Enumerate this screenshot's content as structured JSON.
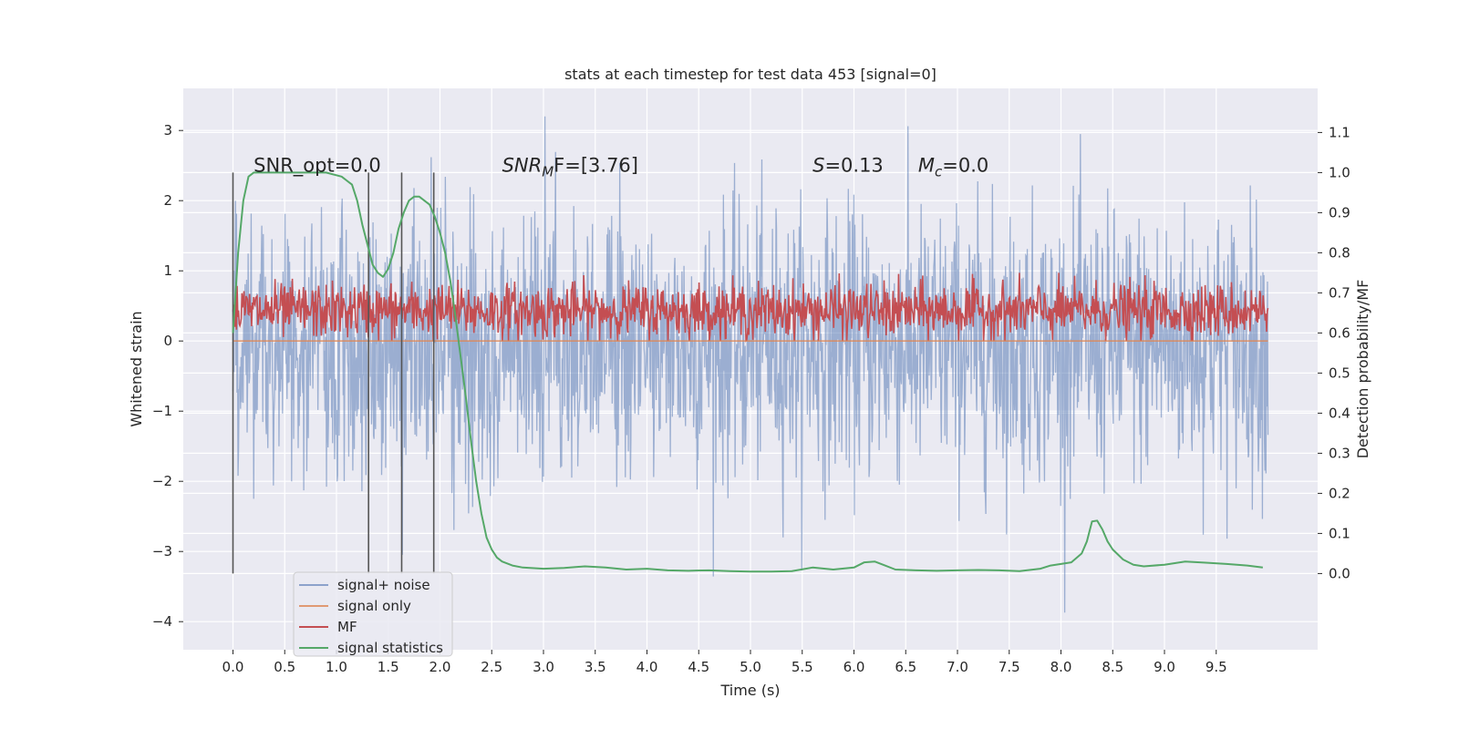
{
  "chart_data": {
    "type": "line",
    "title": "stats at each timestep for test data 453 [signal=0]",
    "xlabel": "Time (s)",
    "ylabel_left": "Whitened strain",
    "ylabel_right": "Detection probability/MF",
    "xlim": [
      -0.48,
      10.48
    ],
    "ylim_left": [
      -4.4,
      3.6
    ],
    "ylim_right": [
      -0.19,
      1.21
    ],
    "x_ticks": [
      0.0,
      0.5,
      1.0,
      1.5,
      2.0,
      2.5,
      3.0,
      3.5,
      4.0,
      4.5,
      5.0,
      5.5,
      6.0,
      6.5,
      7.0,
      7.5,
      8.0,
      8.5,
      9.0,
      9.5
    ],
    "x_tick_labels": [
      "0.0",
      "0.5",
      "1.0",
      "1.5",
      "2.0",
      "2.5",
      "3.0",
      "3.5",
      "4.0",
      "4.5",
      "5.0",
      "5.5",
      "6.0",
      "6.5",
      "7.0",
      "7.5",
      "8.0",
      "8.5",
      "9.0",
      "9.5"
    ],
    "y_left_ticks": [
      3,
      2,
      1,
      0,
      -1,
      -2,
      -3,
      -4
    ],
    "y_left_tick_labels": [
      "3",
      "2",
      "1",
      "0",
      "−1",
      "−2",
      "−3",
      "−4"
    ],
    "y_right_ticks": [
      1.1,
      1.0,
      0.9,
      0.8,
      0.7,
      0.6,
      0.5,
      0.4,
      0.3,
      0.2,
      0.1,
      0.0
    ],
    "y_right_tick_labels": [
      "1.1",
      "1.0",
      "0.9",
      "0.8",
      "0.7",
      "0.6",
      "0.5",
      "0.4",
      "0.3",
      "0.2",
      "0.1",
      "0.0"
    ],
    "grid": true,
    "legend_placement": "lower-left",
    "series": [
      {
        "name": "signal+ noise",
        "axis": "left",
        "color": "#4c72b0",
        "description_range": [
          -4.05,
          3.2
        ],
        "x_range": [
          0.0,
          10.0
        ]
      },
      {
        "name": "signal only",
        "axis": "left",
        "color": "#dd8452",
        "constant_value": 0.0,
        "x_range": [
          0.0,
          10.0
        ]
      },
      {
        "name": "MF",
        "axis": "right",
        "color": "#c44e52",
        "value_range": [
          0.58,
          0.75
        ],
        "x_range": [
          0.0,
          10.0
        ]
      },
      {
        "name": "signal statistics",
        "axis": "right",
        "color": "#55a868",
        "x": [
          0.0,
          0.05,
          0.1,
          0.15,
          0.2,
          0.3,
          0.5,
          0.7,
          0.9,
          1.05,
          1.15,
          1.2,
          1.25,
          1.3,
          1.35,
          1.4,
          1.45,
          1.5,
          1.55,
          1.6,
          1.65,
          1.7,
          1.75,
          1.8,
          1.85,
          1.9,
          1.95,
          2.0,
          2.05,
          2.1,
          2.15,
          2.2,
          2.25,
          2.3,
          2.35,
          2.4,
          2.45,
          2.5,
          2.55,
          2.6,
          2.7,
          2.8,
          3.0,
          3.2,
          3.4,
          3.6,
          3.8,
          4.0,
          4.2,
          4.4,
          4.6,
          4.8,
          5.0,
          5.2,
          5.4,
          5.6,
          5.8,
          6.0,
          6.1,
          6.2,
          6.3,
          6.4,
          6.6,
          6.8,
          7.0,
          7.2,
          7.4,
          7.6,
          7.8,
          7.9,
          8.0,
          8.1,
          8.2,
          8.25,
          8.3,
          8.35,
          8.4,
          8.45,
          8.5,
          8.6,
          8.7,
          8.8,
          9.0,
          9.2,
          9.4,
          9.6,
          9.8,
          9.95
        ],
        "y": [
          0.6,
          0.8,
          0.93,
          0.99,
          1.0,
          1.0,
          1.0,
          1.0,
          1.0,
          0.99,
          0.97,
          0.93,
          0.87,
          0.82,
          0.77,
          0.75,
          0.74,
          0.76,
          0.8,
          0.86,
          0.9,
          0.93,
          0.94,
          0.94,
          0.93,
          0.92,
          0.89,
          0.85,
          0.8,
          0.73,
          0.64,
          0.54,
          0.44,
          0.33,
          0.23,
          0.15,
          0.09,
          0.06,
          0.04,
          0.03,
          0.02,
          0.015,
          0.012,
          0.014,
          0.018,
          0.015,
          0.01,
          0.012,
          0.008,
          0.007,
          0.008,
          0.006,
          0.005,
          0.005,
          0.006,
          0.015,
          0.01,
          0.015,
          0.028,
          0.03,
          0.02,
          0.01,
          0.008,
          0.007,
          0.008,
          0.009,
          0.008,
          0.006,
          0.012,
          0.02,
          0.024,
          0.028,
          0.05,
          0.08,
          0.13,
          0.132,
          0.11,
          0.08,
          0.06,
          0.035,
          0.022,
          0.018,
          0.022,
          0.03,
          0.027,
          0.024,
          0.02,
          0.015
        ]
      }
    ],
    "vertical_markers": [
      0.0,
      1.31,
      1.63,
      1.94
    ],
    "annotations": [
      {
        "id": "snr-opt",
        "text": "SNR_opt=0.0",
        "x": 0.2,
        "y_right": 1.0
      },
      {
        "id": "snr-mf",
        "prefix": "SNR",
        "sub": "M",
        "suffix": "F=[3.76]",
        "x": 2.6,
        "y_right": 1.0
      },
      {
        "id": "s-stat",
        "prefix": "S",
        "suffix": "=0.13",
        "x": 5.6,
        "y_right": 1.0
      },
      {
        "id": "chirp-mass",
        "prefix": "M",
        "sub": "c",
        "suffix": "=0.0",
        "x": 6.62,
        "y_right": 1.0
      }
    ],
    "colors": {
      "plot_bg": "#eaeaf2",
      "grid": "#ffffff",
      "noise": "#4c72b0",
      "signal": "#dd8452",
      "mf": "#c44e52",
      "stat": "#55a868",
      "marker": "#555555"
    }
  }
}
